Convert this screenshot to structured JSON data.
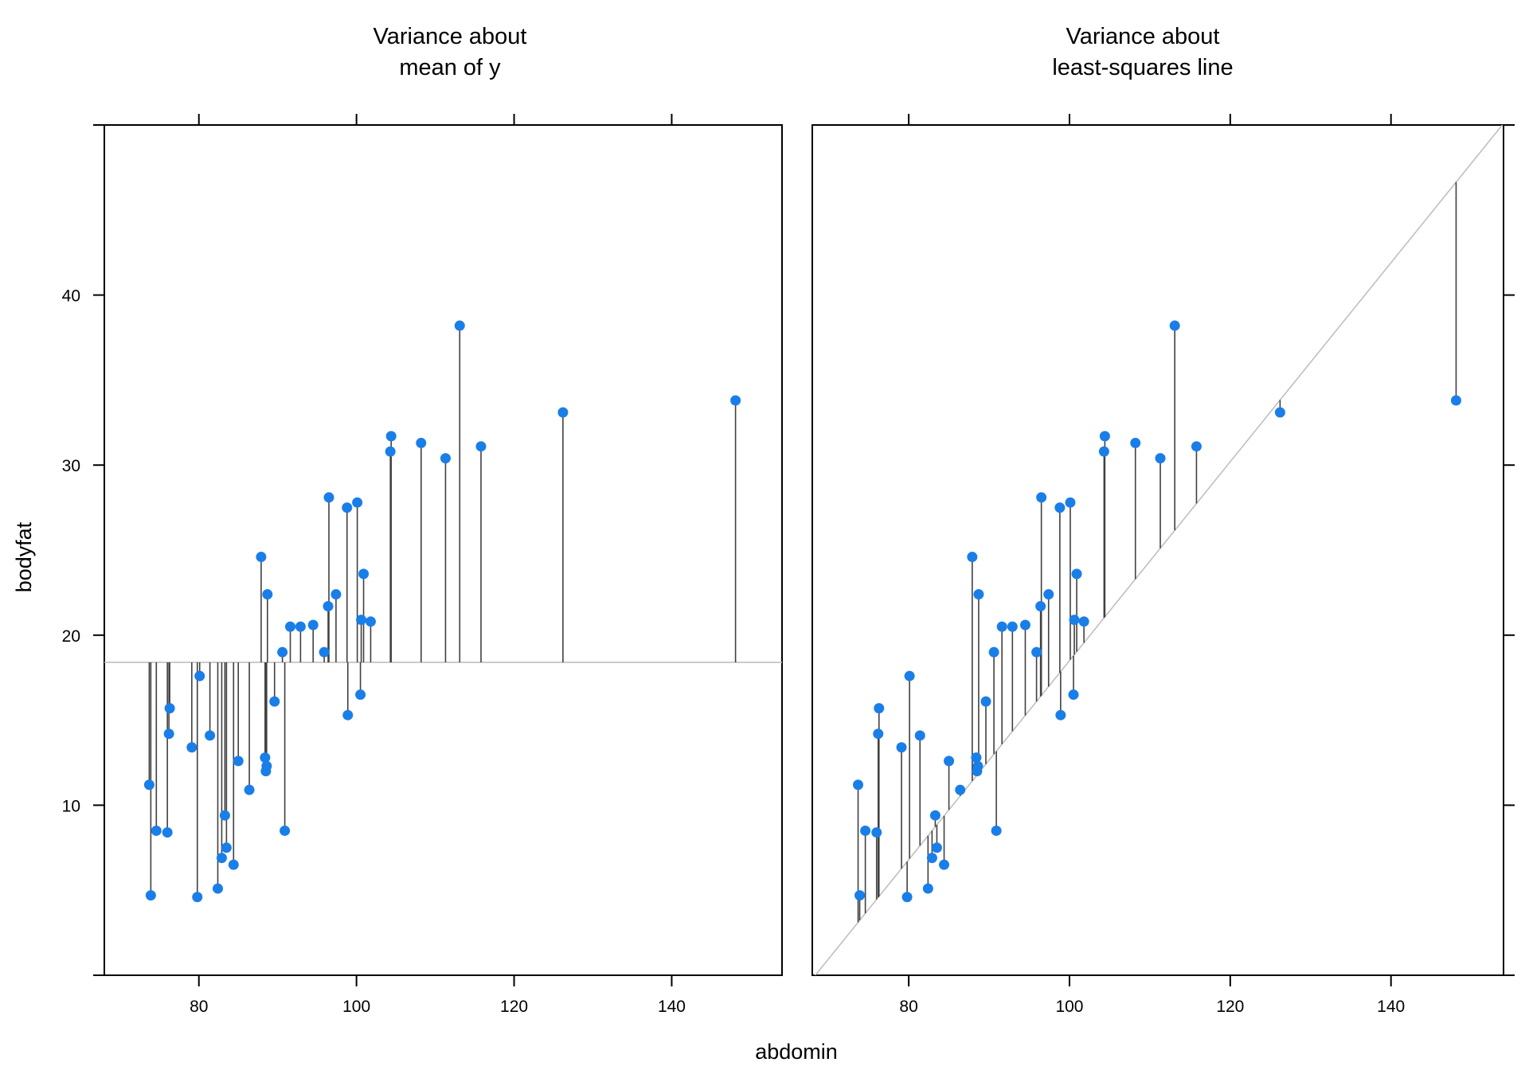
{
  "chart_data": {
    "type": "scatter",
    "xlabel": "abdomin",
    "ylabel": "bodyfat",
    "xlim": [
      68,
      154
    ],
    "ylim": [
      0,
      50
    ],
    "xticks": [
      80,
      100,
      120,
      140
    ],
    "yticks": [
      10,
      20,
      30,
      40
    ],
    "point_color": "#1a7ee8",
    "residual_color": "#404040",
    "reference_color": "#bfbfbf",
    "grid": false,
    "mean_y": 18.4,
    "fit": {
      "intercept": -40.0,
      "slope": 0.585
    },
    "panels": [
      {
        "title_line1": "Variance about",
        "title_line2": "mean of y",
        "reference": "mean"
      },
      {
        "title_line1": "Variance about",
        "title_line2": "least-squares line",
        "reference": "fit"
      }
    ],
    "points": [
      [
        73.7,
        11.2
      ],
      [
        73.9,
        4.7
      ],
      [
        74.6,
        8.5
      ],
      [
        76.0,
        8.4
      ],
      [
        76.2,
        14.2
      ],
      [
        76.3,
        15.7
      ],
      [
        79.1,
        13.4
      ],
      [
        79.8,
        4.6
      ],
      [
        80.1,
        17.6
      ],
      [
        81.4,
        14.1
      ],
      [
        82.4,
        5.1
      ],
      [
        82.9,
        6.9
      ],
      [
        83.3,
        9.4
      ],
      [
        83.5,
        7.5
      ],
      [
        84.4,
        6.5
      ],
      [
        85.0,
        12.6
      ],
      [
        86.4,
        10.9
      ],
      [
        87.9,
        24.6
      ],
      [
        88.4,
        12.8
      ],
      [
        88.5,
        12.0
      ],
      [
        88.6,
        12.3
      ],
      [
        88.7,
        22.4
      ],
      [
        89.6,
        16.1
      ],
      [
        90.6,
        19.0
      ],
      [
        90.9,
        8.5
      ],
      [
        91.6,
        20.5
      ],
      [
        92.9,
        20.5
      ],
      [
        94.5,
        20.6
      ],
      [
        95.9,
        19.0
      ],
      [
        96.4,
        21.7
      ],
      [
        96.5,
        28.1
      ],
      [
        97.4,
        22.4
      ],
      [
        98.8,
        27.5
      ],
      [
        98.9,
        15.3
      ],
      [
        100.1,
        27.8
      ],
      [
        100.5,
        16.5
      ],
      [
        100.6,
        20.9
      ],
      [
        100.9,
        23.6
      ],
      [
        101.8,
        20.8
      ],
      [
        104.3,
        30.8
      ],
      [
        104.4,
        31.7
      ],
      [
        108.2,
        31.3
      ],
      [
        111.3,
        30.4
      ],
      [
        113.1,
        38.2
      ],
      [
        115.8,
        31.1
      ],
      [
        126.2,
        33.1
      ],
      [
        148.1,
        33.8
      ]
    ]
  }
}
